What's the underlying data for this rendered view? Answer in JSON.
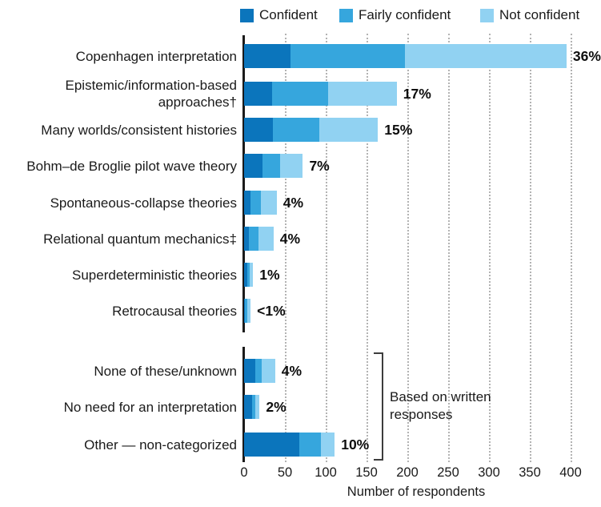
{
  "legend": [
    {
      "label": "Confident",
      "color": "#0b75bc"
    },
    {
      "label": "Fairly confident",
      "color": "#36a6dd"
    },
    {
      "label": "Not confident",
      "color": "#91d2f2"
    }
  ],
  "chart_data": {
    "type": "bar",
    "stacked": true,
    "orientation": "horizontal",
    "title": "",
    "xlabel": "Number of respondents",
    "xlim": [
      0,
      420
    ],
    "xticks": [
      0,
      50,
      100,
      150,
      200,
      250,
      300,
      350,
      400
    ],
    "grid": "dotted-vertical",
    "legend_position": "top",
    "series_names": [
      "Confident",
      "Fairly confident",
      "Not confident"
    ],
    "rows": [
      {
        "label": "Copenhagen interpretation",
        "values": [
          57,
          140,
          198
        ],
        "total": 395,
        "pct": "36%",
        "group": "interpretations"
      },
      {
        "label": "Epistemic/information-based\napproaches†",
        "values": [
          34,
          69,
          84
        ],
        "total": 187,
        "pct": "17%",
        "group": "interpretations"
      },
      {
        "label": "Many worlds/consistent histories",
        "values": [
          35,
          57,
          72
        ],
        "total": 164,
        "pct": "15%",
        "group": "interpretations"
      },
      {
        "label": "Bohm–de Broglie pilot wave theory",
        "values": [
          23,
          21,
          28
        ],
        "total": 72,
        "pct": "7%",
        "group": "interpretations"
      },
      {
        "label": "Spontaneous-collapse theories",
        "values": [
          8,
          13,
          19
        ],
        "total": 40,
        "pct": "4%",
        "group": "interpretations"
      },
      {
        "label": "Relational quantum mechanics‡",
        "values": [
          6,
          12,
          18
        ],
        "total": 36,
        "pct": "4%",
        "group": "interpretations"
      },
      {
        "label": "Superdeterministic theories",
        "values": [
          4,
          3,
          4
        ],
        "total": 11,
        "pct": "1%",
        "group": "interpretations"
      },
      {
        "label": "Retrocausal theories",
        "values": [
          1,
          3,
          4
        ],
        "total": 8,
        "pct": "<1%",
        "group": "interpretations"
      },
      {
        "label": "None of these/unknown",
        "values": [
          14,
          8,
          16
        ],
        "total": 38,
        "pct": "4%",
        "group": "written"
      },
      {
        "label": "No need for an interpretation",
        "values": [
          10,
          4,
          5
        ],
        "total": 19,
        "pct": "2%",
        "group": "written"
      },
      {
        "label": "Other — non-categorized",
        "values": [
          68,
          26,
          17
        ],
        "total": 111,
        "pct": "10%",
        "group": "written"
      }
    ],
    "annotation": "Based on written responses"
  }
}
